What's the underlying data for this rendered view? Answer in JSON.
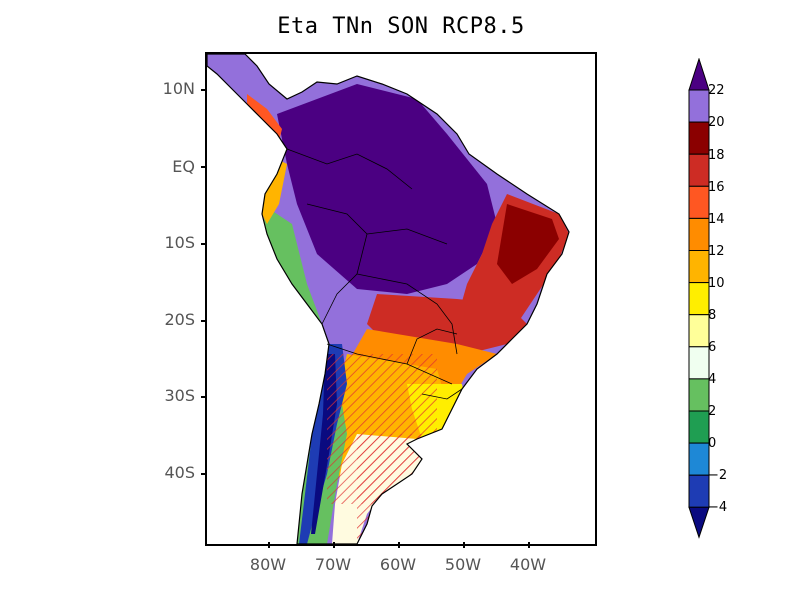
{
  "title": "Eta TNn SON RCP8.5",
  "map": {
    "lat_labels": [
      "10N",
      "EQ",
      "10S",
      "20S",
      "30S",
      "40S"
    ],
    "lon_labels": [
      "80W",
      "70W",
      "60W",
      "50W",
      "40W"
    ],
    "lat_values": [
      10,
      0,
      -10,
      -20,
      -30,
      -40
    ],
    "lon_values": [
      -80,
      -70,
      -60,
      -50,
      -40
    ],
    "lon_range": [
      -90,
      -30
    ],
    "lat_range": [
      -50,
      15
    ],
    "hatching": "red diagonal hatching over southern cone (northern Argentina to Patagonia)"
  },
  "colorbar": {
    "labels": [
      "22",
      "20",
      "18",
      "16",
      "14",
      "12",
      "10",
      "8",
      "6",
      "4",
      "2",
      "0",
      "−2",
      "−4"
    ],
    "colors": [
      "#4b0082",
      "#9370db",
      "#8b0000",
      "#cd2c24",
      "#ff5722",
      "#ff8c00",
      "#ffb400",
      "#ffee00",
      "#ffff99",
      "#f0fff0",
      "#66c060",
      "#1f9e52",
      "#1e88d6",
      "#1e3cb4",
      "#0a0a80"
    ]
  }
}
